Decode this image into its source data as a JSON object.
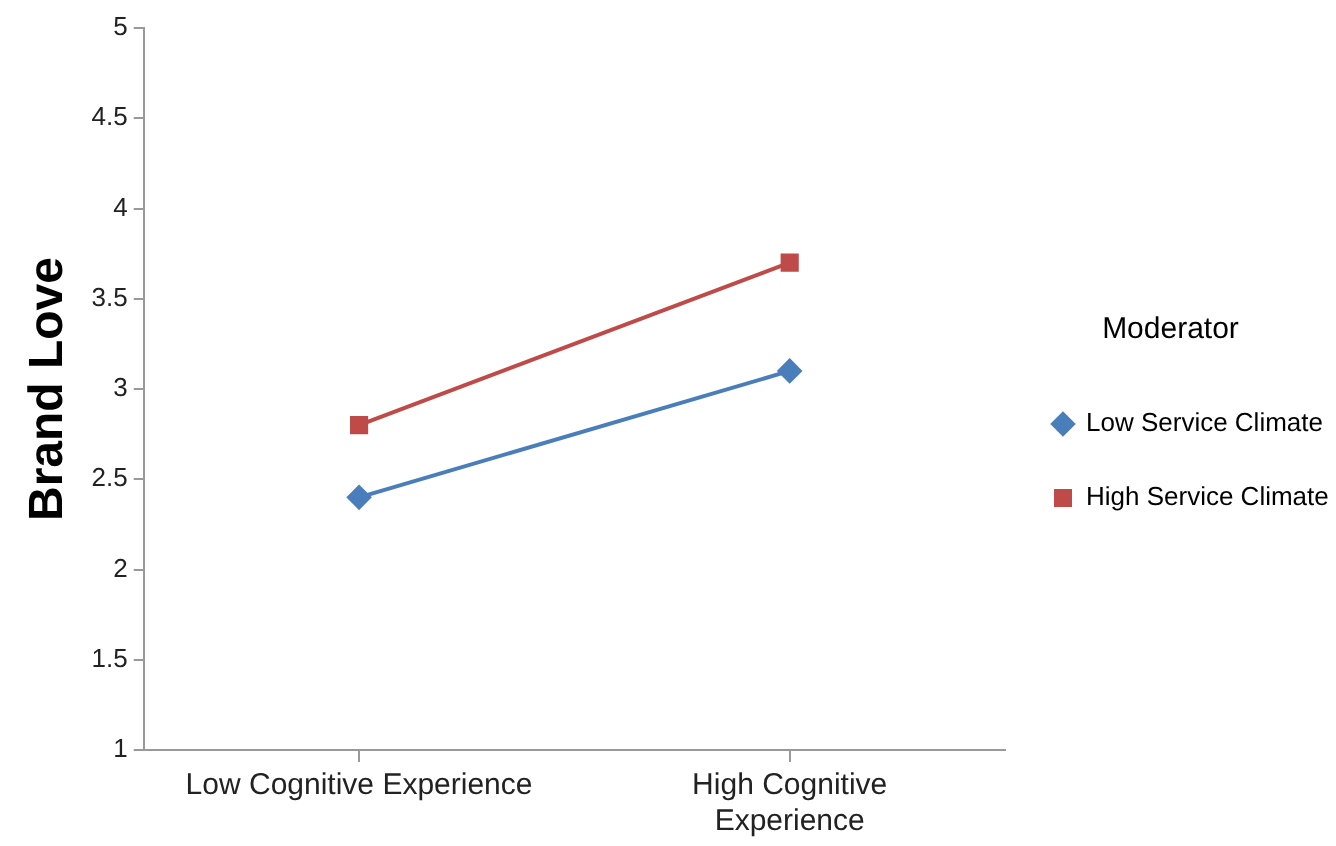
{
  "chart_data": {
    "type": "line",
    "ylabel": "Brand Love",
    "legend_title": "Moderator",
    "categories": [
      "Low Cognitive Experience",
      "High Cognitive Experience"
    ],
    "series": [
      {
        "name": "Low Service Climate",
        "color": "#4a7ebb",
        "marker": "diamond",
        "values": [
          2.4,
          3.1
        ]
      },
      {
        "name": "High Service Climate",
        "color": "#be4b48",
        "marker": "square",
        "values": [
          2.8,
          3.7
        ]
      }
    ],
    "ylim": [
      1,
      5
    ],
    "yticks": [
      1,
      1.5,
      2,
      2.5,
      3,
      3.5,
      4,
      4.5,
      5
    ],
    "grid": false,
    "legend": "right",
    "line_style": "solid"
  }
}
